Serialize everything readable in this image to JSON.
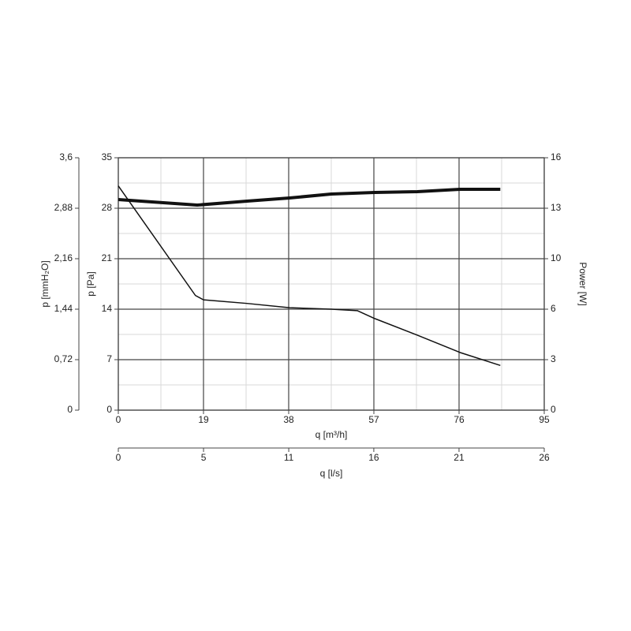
{
  "chart_data": {
    "type": "line",
    "grid": true,
    "minor_grid": true,
    "xlabel": "q [m³/h]",
    "xlim": [
      0,
      95
    ],
    "xticks": [
      0,
      19,
      38,
      57,
      76,
      95
    ],
    "x2label": "q [l/s]",
    "x2lim": [
      0,
      26.39
    ],
    "x2ticks": [
      0,
      {
        "value": 5.28,
        "label": "5"
      },
      {
        "value": 10.56,
        "label": "11"
      },
      {
        "value": 15.83,
        "label": "16"
      },
      {
        "value": 21.11,
        "label": "21"
      },
      {
        "value": 26.39,
        "label": "26"
      }
    ],
    "ylabel": "p [Pa]",
    "ylim": [
      0,
      35
    ],
    "yticks": [
      0,
      7,
      14,
      21,
      28,
      35
    ],
    "y3label": "p [mmH₂O]",
    "y3lim": [
      0,
      3.6
    ],
    "y3ticks": [
      0,
      {
        "value": 0.72,
        "label": "0,72"
      },
      {
        "value": 1.44,
        "label": "1,44"
      },
      {
        "value": 2.16,
        "label": "2,16"
      },
      {
        "value": 2.88,
        "label": "2,88"
      },
      {
        "value": 3.6,
        "label": "3,6"
      }
    ],
    "y2label": "Power [W]",
    "y2lim": [
      0,
      16
    ],
    "y2ticks": [
      0,
      {
        "value": 3.2,
        "label": "3"
      },
      {
        "value": 6.4,
        "label": "6"
      },
      {
        "value": 9.6,
        "label": "10"
      },
      {
        "value": 12.8,
        "label": "13"
      },
      16
    ],
    "series": [
      {
        "color": "#111111",
        "line_width": 1.5,
        "x": [
          0,
          17.2,
          19,
          28.7,
          38.2,
          47.5,
          53.3,
          57.2,
          66.7,
          76.2,
          85.2
        ],
        "values": [
          31.1,
          15.9,
          15.3,
          14.8,
          14.2,
          14.0,
          13.8,
          12.7,
          10.4,
          8.0,
          6.2
        ]
      },
      {
        "color": "#111111",
        "line_width": 4,
        "axis": "y2",
        "x": [
          0,
          17.6,
          28.7,
          38.2,
          47.5,
          57.2,
          66.7,
          76.2,
          85.2
        ],
        "values": [
          13.35,
          13.0,
          13.25,
          13.45,
          13.7,
          13.8,
          13.85,
          14.0,
          14.0
        ]
      }
    ]
  }
}
